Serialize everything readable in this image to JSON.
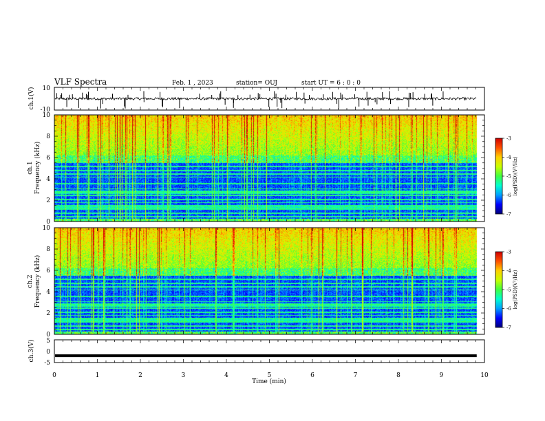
{
  "header": {
    "title": "VLF Spectra",
    "date": "Feb. 1 , 2023",
    "station": "station= OUJ",
    "start_ut": "start UT =  6 : 0 : 0"
  },
  "chart_data": [
    {
      "type": "line",
      "name": "ch1-waveform",
      "ylabel": "ch.1(V)",
      "ylim": [
        -10,
        10
      ],
      "y_ticklabels": [
        "10",
        "-10"
      ],
      "baseline": 0,
      "x_range_min": [
        0,
        9.82
      ],
      "color": "#000000"
    },
    {
      "type": "heatmap",
      "name": "ch1-spectrogram",
      "ylabel_top": "ch.1",
      "ylabel": "Frequency (kHz)",
      "ylim": [
        0,
        10
      ],
      "y_ticklabels": [
        "0",
        "2",
        "4",
        "6",
        "8",
        "10"
      ],
      "colorbar": {
        "label": "log(PSD)(V²/Hz)",
        "range": [
          -7,
          -3
        ],
        "ticklabels": [
          "-3",
          "-4",
          "-5",
          "-6",
          "-7"
        ]
      }
    },
    {
      "type": "heatmap",
      "name": "ch2-spectrogram",
      "ylabel_top": "ch.2",
      "ylabel": "Frequency (kHz)",
      "ylim": [
        0,
        10
      ],
      "y_ticklabels": [
        "0",
        "2",
        "4",
        "6",
        "8",
        "10"
      ],
      "colorbar": {
        "label": "log(PSD)(V²/Hz)",
        "range": [
          -7,
          -3
        ],
        "ticklabels": [
          "-3",
          "-4",
          "-5",
          "-6",
          "-7"
        ]
      }
    },
    {
      "type": "line",
      "name": "ch3-waveform",
      "ylabel": "ch.3(V)",
      "ylim": [
        -5,
        5
      ],
      "y_ticklabels": [
        "5",
        "0",
        "-5"
      ],
      "baseline": -2,
      "x_range_min": [
        0,
        9.82
      ],
      "color": "#000000"
    }
  ],
  "x_axis": {
    "label": "Time (min)",
    "range": [
      0,
      10
    ],
    "ticklabels": [
      "0",
      "1",
      "2",
      "3",
      "4",
      "5",
      "6",
      "7",
      "8",
      "9",
      "10"
    ]
  },
  "colors": {
    "background": "#ffffff",
    "axes": "#000000",
    "colormap": [
      "#00007a",
      "#0000ff",
      "#00a0ff",
      "#00ffd0",
      "#40ff40",
      "#c8ff00",
      "#ffd000",
      "#ff5000",
      "#d00000",
      "#ffffff"
    ]
  }
}
